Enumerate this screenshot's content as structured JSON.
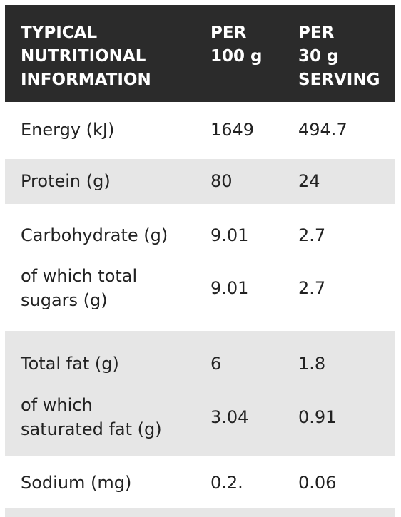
{
  "header": {
    "col1": "TYPICAL\nNUTRITIONAL\nINFORMATION",
    "col2": "PER\n100 g",
    "col3": "PER\n30 g\nSERVING"
  },
  "rows": [
    {
      "name": "Energy (kJ)",
      "per100": "1649",
      "per30": "494.7"
    },
    {
      "name": "Protein (g)",
      "per100": "80",
      "per30": "24"
    },
    {
      "name": "Carbohydrate (g)",
      "per100": "9.01",
      "per30": "2.7"
    },
    {
      "name": "of which total\nsugars (g)",
      "per100": "9.01",
      "per30": "2.7"
    },
    {
      "name": "Total fat (g)",
      "per100": "6",
      "per30": "1.8"
    },
    {
      "name": "of which\nsaturated fat (g)",
      "per100": "3.04",
      "per30": "0.91"
    },
    {
      "name": "Sodium (mg)",
      "per100": "0.2.",
      "per30": "0.06"
    }
  ],
  "colors": {
    "header_bg": "#2b2b2b",
    "shade_bg": "#e6e6e6",
    "text": "#222222"
  }
}
